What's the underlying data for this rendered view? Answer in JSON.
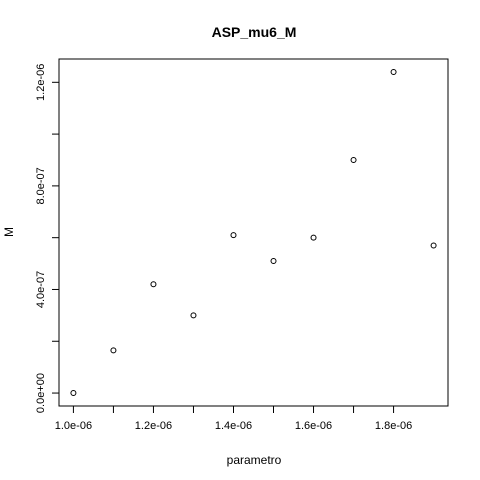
{
  "chart_data": {
    "type": "scatter",
    "title": "ASP_mu6_M",
    "xlabel": "parametro",
    "ylabel": "M",
    "xlim": [
      9.64e-07,
      1.936e-06
    ],
    "ylim": [
      -5e-08,
      1.29e-06
    ],
    "x_ticks": [
      {
        "value": 1e-06,
        "label": "1.0e-06"
      },
      {
        "value": 1.2e-06,
        "label": "1.2e-06"
      },
      {
        "value": 1.4e-06,
        "label": "1.4e-06"
      },
      {
        "value": 1.6e-06,
        "label": "1.6e-06"
      },
      {
        "value": 1.8e-06,
        "label": "1.8e-06"
      }
    ],
    "y_ticks": [
      {
        "value": 0,
        "label": "0.0e+00"
      },
      {
        "value": 4e-07,
        "label": "4.0e-07"
      },
      {
        "value": 8e-07,
        "label": "8.0e-07"
      },
      {
        "value": 1.2e-06,
        "label": "1.2e-06"
      }
    ],
    "y_minor_ticks": [
      2e-07,
      6e-07,
      1e-06
    ],
    "x_minor_ticks": [
      1.1e-06,
      1.3e-06,
      1.5e-06,
      1.7e-06
    ],
    "grid": false,
    "marker": "open-circle",
    "points": [
      {
        "x": 1e-06,
        "y": 0.0
      },
      {
        "x": 1.1e-06,
        "y": 1.65e-07
      },
      {
        "x": 1.2e-06,
        "y": 4.2e-07
      },
      {
        "x": 1.3e-06,
        "y": 3e-07
      },
      {
        "x": 1.4e-06,
        "y": 6.1e-07
      },
      {
        "x": 1.5e-06,
        "y": 5.1e-07
      },
      {
        "x": 1.6e-06,
        "y": 6e-07
      },
      {
        "x": 1.7e-06,
        "y": 9e-07
      },
      {
        "x": 1.8e-06,
        "y": 1.24e-06
      },
      {
        "x": 1.9e-06,
        "y": 5.7e-07
      }
    ]
  }
}
